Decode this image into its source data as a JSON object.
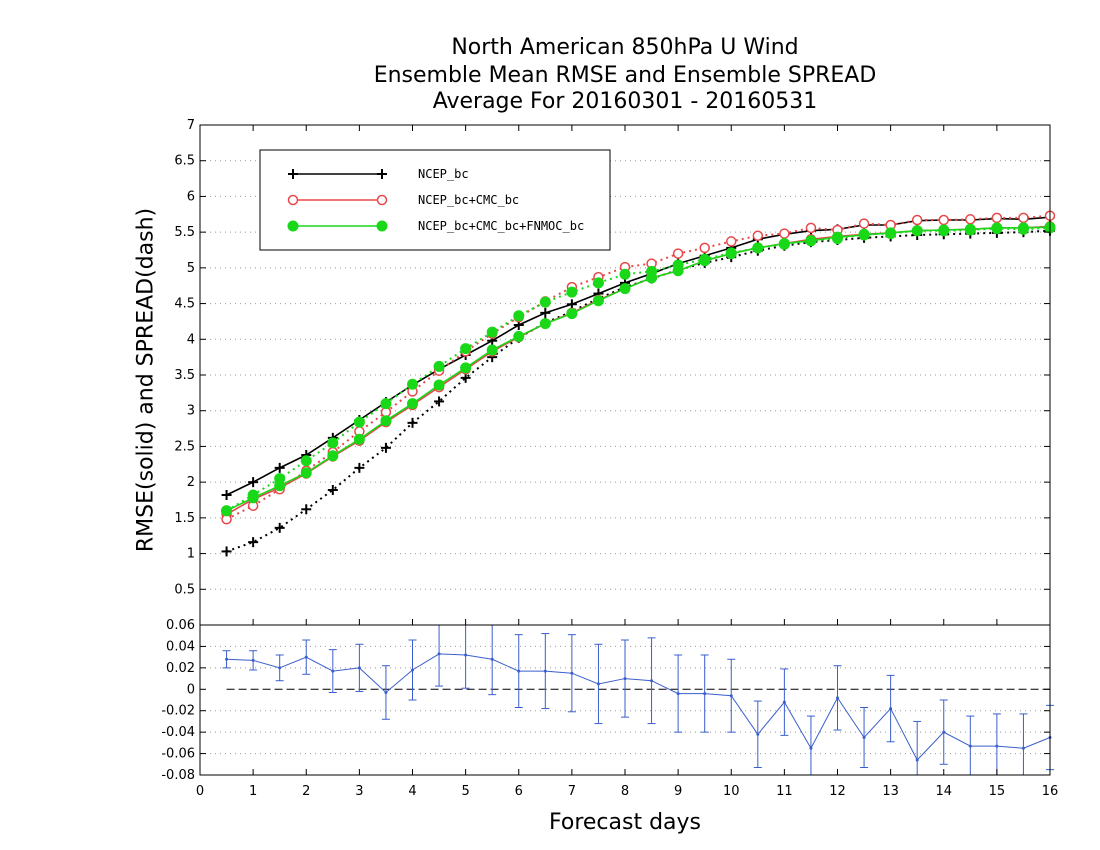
{
  "chart_data": {
    "type": "line",
    "title": [
      "North American 850hPa U Wind",
      "Ensemble Mean RMSE and Ensemble SPREAD",
      "Average For 20160301 - 20160531"
    ],
    "xlabel": "Forecast days",
    "ylabel": "RMSE(solid) and SPREAD(dash)",
    "xlim": [
      0,
      16
    ],
    "x_ticks": [
      "0",
      "1",
      "2",
      "3",
      "4",
      "5",
      "6",
      "7",
      "8",
      "9",
      "10",
      "11",
      "12",
      "13",
      "14",
      "15",
      "16"
    ],
    "grid": true,
    "legend_placement": "top-left",
    "x": [
      0.5,
      1,
      1.5,
      2,
      2.5,
      3,
      3.5,
      4,
      4.5,
      5,
      5.5,
      6,
      6.5,
      7,
      7.5,
      8,
      8.5,
      9,
      9.5,
      10,
      10.5,
      11,
      11.5,
      12,
      12.5,
      13,
      13.5,
      14,
      14.5,
      15,
      15.5,
      16
    ],
    "upper_panel": {
      "ylim": [
        0,
        7
      ],
      "y_ticks": [
        "0.5",
        "1",
        "1.5",
        "2",
        "2.5",
        "3",
        "3.5",
        "4",
        "4.5",
        "5",
        "5.5",
        "6",
        "6.5",
        "7"
      ],
      "series": [
        {
          "name": "NCEP_bc",
          "color": "#000000",
          "marker": "plus",
          "rmse": [
            1.82,
            2.0,
            2.2,
            2.38,
            2.62,
            2.87,
            3.12,
            3.36,
            3.58,
            3.78,
            3.98,
            4.2,
            4.37,
            4.49,
            4.64,
            4.79,
            4.92,
            5.06,
            5.17,
            5.28,
            5.4,
            5.47,
            5.52,
            5.54,
            5.6,
            5.6,
            5.66,
            5.67,
            5.67,
            5.69,
            5.68,
            5.71
          ],
          "spread": [
            1.03,
            1.16,
            1.36,
            1.62,
            1.89,
            2.2,
            2.48,
            2.83,
            3.13,
            3.46,
            3.75,
            4.02,
            4.23,
            4.39,
            4.57,
            4.73,
            4.85,
            4.97,
            5.07,
            5.15,
            5.24,
            5.31,
            5.36,
            5.39,
            5.42,
            5.44,
            5.46,
            5.47,
            5.48,
            5.49,
            5.5,
            5.52
          ]
        },
        {
          "name": "NCEP_bc+CMC_bc",
          "color": "#e8484a",
          "marker": "open-circle",
          "rmse": [
            1.55,
            1.76,
            1.92,
            2.12,
            2.36,
            2.58,
            2.84,
            3.08,
            3.33,
            3.58,
            3.83,
            4.03,
            4.22,
            4.37,
            4.55,
            4.71,
            4.86,
            4.96,
            5.1,
            5.2,
            5.28,
            5.34,
            5.4,
            5.44,
            5.47,
            5.49,
            5.52,
            5.53,
            5.54,
            5.56,
            5.56,
            5.58
          ],
          "spread": [
            1.48,
            1.67,
            1.9,
            2.16,
            2.42,
            2.71,
            2.98,
            3.27,
            3.56,
            3.83,
            4.08,
            4.31,
            4.53,
            4.73,
            4.87,
            5.01,
            5.06,
            5.2,
            5.28,
            5.37,
            5.45,
            5.48,
            5.56,
            5.53,
            5.62,
            5.6,
            5.67,
            5.67,
            5.68,
            5.7,
            5.7,
            5.73
          ]
        },
        {
          "name": "NCEP_bc+CMC_bc+FNMOC_bc",
          "color": "#18d818",
          "marker": "filled-circle",
          "rmse": [
            1.6,
            1.78,
            1.95,
            2.13,
            2.37,
            2.6,
            2.86,
            3.1,
            3.36,
            3.6,
            3.85,
            4.04,
            4.22,
            4.36,
            4.54,
            4.71,
            4.86,
            4.96,
            5.1,
            5.2,
            5.28,
            5.34,
            5.38,
            5.43,
            5.46,
            5.49,
            5.52,
            5.53,
            5.54,
            5.56,
            5.56,
            5.57
          ],
          "spread": [
            1.6,
            1.82,
            2.05,
            2.3,
            2.55,
            2.84,
            3.1,
            3.37,
            3.62,
            3.87,
            4.1,
            4.33,
            4.52,
            4.66,
            4.79,
            4.91,
            4.95,
            5.04,
            5.12,
            5.21,
            5.28,
            5.33,
            5.38,
            5.41,
            5.47,
            5.48,
            5.52,
            5.52,
            5.53,
            5.55,
            5.54,
            5.56
          ]
        }
      ]
    },
    "lower_panel": {
      "ylim": [
        -0.08,
        0.06
      ],
      "y_ticks": [
        "0.06",
        "0.04",
        "0.02",
        "0",
        "-0.02",
        "-0.04",
        "-0.06",
        "-0.08"
      ],
      "zero_line": "dashed",
      "series": [
        {
          "color": "#3a5fcd",
          "values": [
            0.028,
            0.027,
            0.02,
            0.03,
            0.017,
            0.02,
            -0.003,
            0.018,
            0.033,
            0.032,
            0.028,
            0.017,
            0.017,
            0.015,
            0.005,
            0.01,
            0.008,
            -0.004,
            -0.004,
            -0.006,
            -0.042,
            -0.012,
            -0.055,
            -0.008,
            -0.045,
            -0.018,
            -0.066,
            -0.04,
            -0.053,
            -0.053,
            -0.055,
            -0.045
          ],
          "err": [
            0.008,
            0.009,
            0.012,
            0.016,
            0.02,
            0.022,
            0.025,
            0.028,
            0.03,
            0.031,
            0.033,
            0.034,
            0.035,
            0.036,
            0.037,
            0.036,
            0.04,
            0.036,
            0.036,
            0.034,
            0.031,
            0.031,
            0.03,
            0.03,
            0.028,
            0.031,
            0.036,
            0.03,
            0.028,
            0.03,
            0.032,
            0.03
          ]
        }
      ]
    }
  }
}
